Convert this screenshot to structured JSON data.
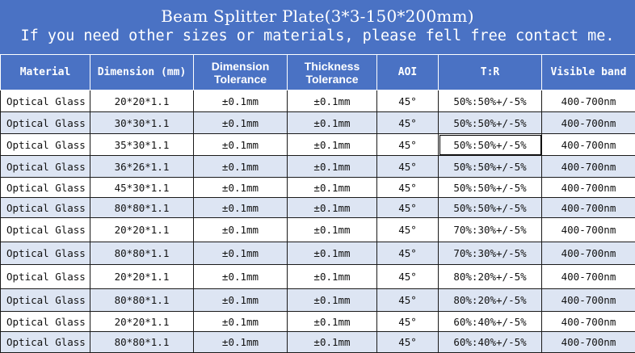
{
  "banner": {
    "title": "Beam Splitter Plate(3*3-150*200mm)",
    "subtitle": "If you need other sizes or materials, please fell free contact me."
  },
  "table": {
    "headers": {
      "material": "Material",
      "dimension": "Dimension (mm)",
      "dimension_tolerance": "Dimension Tolerance",
      "thickness_tolerance": "Thickness Tolerance",
      "aoi": "AOI",
      "tr": "T:R",
      "visible_band": "Visible band"
    },
    "rows": [
      {
        "material": "Optical Glass",
        "dimension": "20*20*1.1",
        "dim_tol": "±0.1mm",
        "thk_tol": "±0.1mm",
        "aoi": "45°",
        "tr": "50%:50%+/-5%",
        "band": "400-700nm"
      },
      {
        "material": "Optical Glass",
        "dimension": "30*30*1.1",
        "dim_tol": "±0.1mm",
        "thk_tol": "±0.1mm",
        "aoi": "45°",
        "tr": "50%:50%+/-5%",
        "band": "400-700nm"
      },
      {
        "material": "Optical Glass",
        "dimension": "35*30*1.1",
        "dim_tol": "±0.1mm",
        "thk_tol": "±0.1mm",
        "aoi": "45°",
        "tr": "50%:50%+/-5%",
        "band": "400-700nm"
      },
      {
        "material": "Optical Glass",
        "dimension": "36*26*1.1",
        "dim_tol": "±0.1mm",
        "thk_tol": "±0.1mm",
        "aoi": "45°",
        "tr": "50%:50%+/-5%",
        "band": "400-700nm"
      },
      {
        "material": "Optical Glass",
        "dimension": "45*30*1.1",
        "dim_tol": "±0.1mm",
        "thk_tol": "±0.1mm",
        "aoi": "45°",
        "tr": "50%:50%+/-5%",
        "band": "400-700nm"
      },
      {
        "material": "Optical Glass",
        "dimension": "80*80*1.1",
        "dim_tol": "±0.1mm",
        "thk_tol": "±0.1mm",
        "aoi": "45°",
        "tr": "50%:50%+/-5%",
        "band": "400-700nm"
      },
      {
        "material": "Optical Glass",
        "dimension": "20*20*1.1",
        "dim_tol": "±0.1mm",
        "thk_tol": "±0.1mm",
        "aoi": "45°",
        "tr": "70%:30%+/-5%",
        "band": "400-700nm"
      },
      {
        "material": "Optical Glass",
        "dimension": "80*80*1.1",
        "dim_tol": "±0.1mm",
        "thk_tol": "±0.1mm",
        "aoi": "45°",
        "tr": "70%:30%+/-5%",
        "band": "400-700nm"
      },
      {
        "material": "Optical Glass",
        "dimension": "20*20*1.1",
        "dim_tol": "±0.1mm",
        "thk_tol": "±0.1mm",
        "aoi": "45°",
        "tr": "80%:20%+/-5%",
        "band": "400-700nm"
      },
      {
        "material": "Optical Glass",
        "dimension": "80*80*1.1",
        "dim_tol": "±0.1mm",
        "thk_tol": "±0.1mm",
        "aoi": "45°",
        "tr": "80%:20%+/-5%",
        "band": "400-700nm"
      },
      {
        "material": "Optical Glass",
        "dimension": "20*20*1.1",
        "dim_tol": "±0.1mm",
        "thk_tol": "±0.1mm",
        "aoi": "45°",
        "tr": "60%:40%+/-5%",
        "band": "400-700nm"
      },
      {
        "material": "Optical Glass",
        "dimension": "80*80*1.1",
        "dim_tol": "±0.1mm",
        "thk_tol": "±0.1mm",
        "aoi": "45°",
        "tr": "60%:40%+/-5%",
        "band": "400-700nm"
      }
    ]
  },
  "colors": {
    "header_blue": "#4a72c4",
    "row_alt": "#dde5f3"
  }
}
